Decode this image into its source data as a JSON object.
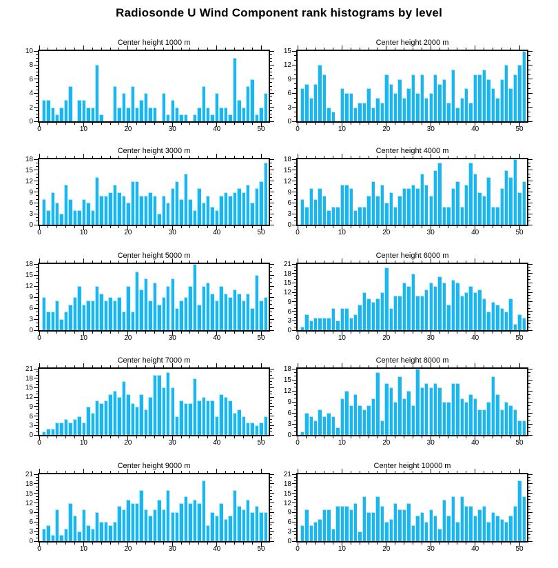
{
  "title": "Radiosonde U Wind Component rank histograms by level",
  "colors": {
    "bar": "#18B7F2",
    "bar_edge": "#A8E7FB",
    "axis": "#000000",
    "background": "#FFFFFF"
  },
  "chart_data": [
    {
      "type": "bar",
      "title": "Center height 1000 m",
      "xlabel": "",
      "ylabel": "",
      "ranks": "1-51",
      "x_range": [
        0,
        51.7
      ],
      "x_major_ticks": [
        0,
        10,
        20,
        30,
        40,
        50
      ],
      "x_minor_step": 2,
      "ylim": [
        0,
        10
      ],
      "y_step": 2,
      "y_minor_step": 0.5,
      "values": [
        3,
        3,
        2,
        1,
        2,
        3,
        5,
        0,
        3,
        3,
        2,
        2,
        8,
        1,
        0,
        0,
        5,
        2,
        4,
        2,
        5,
        2,
        3,
        4,
        2,
        2,
        0,
        4,
        1,
        3,
        2,
        1,
        1,
        0,
        1,
        2,
        5,
        2,
        1,
        4,
        2,
        2,
        1,
        9,
        3,
        2,
        5,
        6,
        1,
        2,
        4
      ]
    },
    {
      "type": "bar",
      "title": "Center height 2000 m",
      "xlabel": "",
      "ylabel": "",
      "ranks": "1-51",
      "x_range": [
        0,
        51.7
      ],
      "x_major_ticks": [
        0,
        10,
        20,
        30,
        40,
        50
      ],
      "x_minor_step": 2,
      "ylim": [
        0,
        15
      ],
      "y_step": 3,
      "y_minor_step": 1,
      "values": [
        7,
        8,
        5,
        8,
        12,
        10,
        3,
        2,
        0,
        7,
        6,
        6,
        3,
        4,
        4,
        7,
        3,
        5,
        4,
        10,
        8,
        6,
        9,
        5,
        7,
        10,
        6,
        10,
        5,
        6,
        10,
        8,
        9,
        4,
        11,
        3,
        5,
        7,
        4,
        10,
        10,
        11,
        9,
        7,
        5,
        9,
        12,
        7,
        10,
        12,
        15
      ]
    },
    {
      "type": "bar",
      "title": "Center height 3000 m",
      "xlabel": "",
      "ylabel": "",
      "ranks": "1-51",
      "x_range": [
        0,
        51.7
      ],
      "x_major_ticks": [
        0,
        10,
        20,
        30,
        40,
        50
      ],
      "x_minor_step": 2,
      "ylim": [
        0,
        18
      ],
      "y_step": 3,
      "y_minor_step": 1,
      "values": [
        7,
        4,
        9,
        6,
        3,
        11,
        7,
        4,
        4,
        7,
        6,
        4,
        13,
        8,
        8,
        9,
        11,
        9,
        8,
        6,
        12,
        12,
        8,
        8,
        9,
        8,
        3,
        8,
        6,
        10,
        12,
        7,
        14,
        7,
        4,
        10,
        6,
        8,
        5,
        4,
        8,
        9,
        8,
        9,
        10,
        9,
        11,
        6,
        10,
        12,
        17
      ]
    },
    {
      "type": "bar",
      "title": "Center height 4000 m",
      "xlabel": "",
      "ylabel": "",
      "ranks": "1-51",
      "x_range": [
        0,
        51.7
      ],
      "x_major_ticks": [
        0,
        10,
        20,
        30,
        40,
        50
      ],
      "x_minor_step": 2,
      "ylim": [
        0,
        18
      ],
      "y_step": 3,
      "y_minor_step": 1,
      "values": [
        7,
        5,
        10,
        7,
        10,
        8,
        4,
        5,
        5,
        11,
        11,
        10,
        4,
        5,
        5,
        8,
        12,
        8,
        11,
        6,
        9,
        5,
        8,
        10,
        10,
        11,
        10,
        14,
        11,
        8,
        15,
        17,
        5,
        5,
        10,
        12,
        5,
        11,
        17,
        14,
        9,
        8,
        13,
        5,
        5,
        10,
        15,
        13,
        18,
        9,
        12
      ]
    },
    {
      "type": "bar",
      "title": "Center height 5000 m",
      "xlabel": "",
      "ylabel": "",
      "ranks": "1-51",
      "x_range": [
        0,
        51.7
      ],
      "x_major_ticks": [
        0,
        10,
        20,
        30,
        40,
        50
      ],
      "x_minor_step": 2,
      "ylim": [
        0,
        18
      ],
      "y_step": 3,
      "y_minor_step": 1,
      "values": [
        9,
        5,
        5,
        8,
        3,
        5,
        7,
        9,
        12,
        7,
        8,
        8,
        12,
        10,
        8,
        9,
        8,
        9,
        5,
        12,
        5,
        16,
        11,
        14,
        8,
        13,
        7,
        9,
        12,
        14,
        6,
        8,
        9,
        12,
        18,
        7,
        12,
        13,
        10,
        8,
        12,
        10,
        9,
        11,
        10,
        8,
        10,
        6,
        15,
        8,
        9
      ]
    },
    {
      "type": "bar",
      "title": "Center height 6000 m",
      "xlabel": "",
      "ylabel": "",
      "ranks": "1-51",
      "x_range": [
        0,
        51.7
      ],
      "x_major_ticks": [
        0,
        10,
        20,
        30,
        40,
        50
      ],
      "x_minor_step": 2,
      "ylim": [
        0,
        21
      ],
      "y_step": 3,
      "y_minor_step": 1,
      "values": [
        1,
        5,
        3,
        4,
        4,
        4,
        4,
        7,
        3,
        7,
        7,
        4,
        5,
        8,
        12,
        10,
        9,
        10,
        12,
        20,
        7,
        11,
        11,
        15,
        14,
        18,
        11,
        11,
        13,
        15,
        14,
        17,
        15,
        8,
        16,
        15,
        11,
        12,
        14,
        12,
        13,
        10,
        6,
        9,
        8,
        7,
        6,
        10,
        2,
        5,
        4
      ]
    },
    {
      "type": "bar",
      "title": "Center height 7000 m",
      "xlabel": "",
      "ylabel": "",
      "ranks": "1-51",
      "x_range": [
        0,
        51.7
      ],
      "x_major_ticks": [
        0,
        10,
        20,
        30,
        40,
        50
      ],
      "x_minor_step": 2,
      "ylim": [
        0,
        21
      ],
      "y_step": 3,
      "y_minor_step": 1,
      "values": [
        1,
        2,
        2,
        4,
        4,
        5,
        4,
        5,
        6,
        4,
        9,
        7,
        11,
        10,
        11,
        13,
        14,
        12,
        17,
        13,
        10,
        9,
        13,
        8,
        12,
        19,
        19,
        15,
        20,
        15,
        6,
        11,
        10,
        10,
        18,
        11,
        12,
        11,
        11,
        6,
        13,
        12,
        11,
        7,
        8,
        6,
        4,
        4,
        3,
        4,
        6
      ]
    },
    {
      "type": "bar",
      "title": "Center height 8000 m",
      "xlabel": "",
      "ylabel": "",
      "ranks": "1-51",
      "x_range": [
        0,
        51.7
      ],
      "x_major_ticks": [
        0,
        10,
        20,
        30,
        40,
        50
      ],
      "x_minor_step": 2,
      "ylim": [
        0,
        18
      ],
      "y_step": 3,
      "y_minor_step": 1,
      "values": [
        1,
        6,
        5,
        4,
        7,
        5,
        6,
        5,
        2,
        10,
        12,
        8,
        11,
        8,
        7,
        8,
        10,
        17,
        4,
        14,
        13,
        9,
        16,
        10,
        12,
        8,
        18,
        13,
        14,
        13,
        14,
        13,
        9,
        9,
        14,
        14,
        10,
        9,
        11,
        10,
        7,
        7,
        9,
        16,
        11,
        7,
        9,
        8,
        7,
        4,
        4
      ]
    },
    {
      "type": "bar",
      "title": "Center height 9000 m",
      "xlabel": "",
      "ylabel": "",
      "ranks": "1-51",
      "x_range": [
        0,
        51.7
      ],
      "x_major_ticks": [
        0,
        10,
        20,
        30,
        40,
        50
      ],
      "x_minor_step": 2,
      "ylim": [
        0,
        21
      ],
      "y_step": 3,
      "y_minor_step": 1,
      "values": [
        4,
        5,
        2,
        10,
        2,
        4,
        12,
        8,
        3,
        10,
        5,
        4,
        9,
        6,
        6,
        5,
        6,
        11,
        10,
        13,
        12,
        12,
        16,
        10,
        8,
        10,
        13,
        10,
        16,
        9,
        9,
        12,
        14,
        12,
        13,
        12,
        19,
        5,
        9,
        8,
        12,
        7,
        8,
        16,
        11,
        10,
        13,
        9,
        11,
        9,
        9
      ]
    },
    {
      "type": "bar",
      "title": "Center height 10000 m",
      "xlabel": "",
      "ylabel": "",
      "ranks": "1-51",
      "x_range": [
        0,
        51.7
      ],
      "x_major_ticks": [
        0,
        10,
        20,
        30,
        40,
        50
      ],
      "x_minor_step": 2,
      "ylim": [
        0,
        21
      ],
      "y_step": 3,
      "y_minor_step": 1,
      "values": [
        5,
        10,
        5,
        6,
        7,
        10,
        10,
        4,
        11,
        11,
        11,
        10,
        12,
        3,
        14,
        9,
        9,
        14,
        11,
        6,
        7,
        12,
        10,
        10,
        12,
        5,
        8,
        9,
        6,
        10,
        8,
        4,
        13,
        8,
        14,
        6,
        14,
        11,
        11,
        8,
        10,
        11,
        6,
        9,
        8,
        7,
        6,
        8,
        11,
        19,
        14
      ]
    }
  ]
}
